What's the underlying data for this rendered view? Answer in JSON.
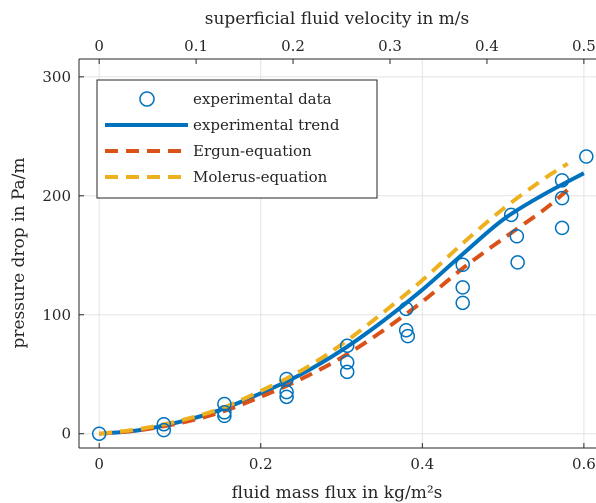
{
  "chart_data": {
    "type": "scatter",
    "xlabel": "fluid mass flux in kg/m²s",
    "ylabel": "pressure drop in Pa/m",
    "x2label": "superficial fluid velocity in m/s",
    "xlim": [
      -0.025,
      0.615
    ],
    "ylim": [
      -12,
      315
    ],
    "x2lim": [
      -0.0208,
      0.5125
    ],
    "xticks": [
      "0",
      "0.2",
      "0.4",
      "0.6"
    ],
    "yticks": [
      "0",
      "100",
      "200",
      "300"
    ],
    "x2ticks": [
      "0",
      "0.1",
      "0.2",
      "0.3",
      "0.4",
      "0.5"
    ],
    "grid": true,
    "legend_position": "top-left",
    "series": [
      {
        "name": "experimental data",
        "kind": "scatter",
        "color": "#0072BD",
        "points": [
          [
            0.0,
            0
          ],
          [
            0.08,
            8
          ],
          [
            0.08,
            3
          ],
          [
            0.155,
            25
          ],
          [
            0.155,
            15
          ],
          [
            0.155,
            18
          ],
          [
            0.232,
            46
          ],
          [
            0.232,
            31
          ],
          [
            0.232,
            35
          ],
          [
            0.307,
            74
          ],
          [
            0.307,
            52
          ],
          [
            0.307,
            60
          ],
          [
            0.38,
            105
          ],
          [
            0.38,
            87
          ],
          [
            0.382,
            82
          ],
          [
            0.45,
            142
          ],
          [
            0.45,
            123
          ],
          [
            0.45,
            110
          ],
          [
            0.51,
            184
          ],
          [
            0.517,
            166
          ],
          [
            0.518,
            144
          ],
          [
            0.573,
            213
          ],
          [
            0.573,
            198
          ],
          [
            0.573,
            173
          ],
          [
            0.603,
            233
          ]
        ]
      },
      {
        "name": "experimental trend",
        "kind": "line",
        "color": "#0072BD",
        "x": [
          0.0,
          0.05,
          0.1,
          0.15,
          0.2,
          0.25,
          0.3,
          0.35,
          0.4,
          0.45,
          0.5,
          0.55,
          0.6
        ],
        "y": [
          0,
          3,
          10,
          20,
          34,
          50,
          70,
          94,
          121,
          151,
          180,
          201,
          219
        ]
      },
      {
        "name": "Ergun-equation",
        "kind": "line",
        "color": "#D95319",
        "x": [
          0.0,
          0.05,
          0.1,
          0.15,
          0.2,
          0.25,
          0.3,
          0.35,
          0.4,
          0.45,
          0.5,
          0.55,
          0.58
        ],
        "y": [
          0,
          3,
          9,
          18,
          31,
          46,
          64,
          86,
          111,
          139,
          164,
          188,
          205
        ]
      },
      {
        "name": "Molerus-equation",
        "kind": "line",
        "color": "#EDB120",
        "x": [
          0.0,
          0.05,
          0.1,
          0.15,
          0.2,
          0.25,
          0.3,
          0.35,
          0.4,
          0.45,
          0.5,
          0.55,
          0.58
        ],
        "y": [
          0,
          4,
          11,
          21,
          36,
          53,
          75,
          101,
          129,
          160,
          189,
          214,
          227
        ]
      }
    ]
  }
}
